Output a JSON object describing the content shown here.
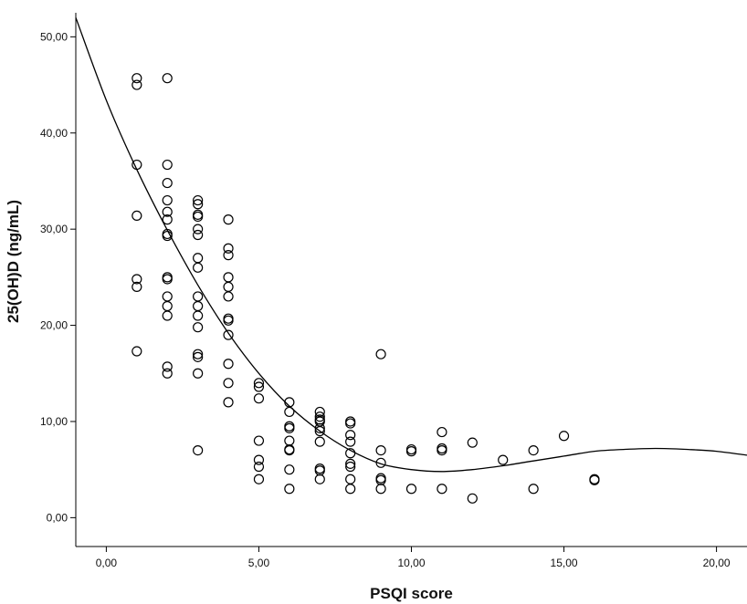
{
  "chart_data": {
    "type": "scatter",
    "title": "",
    "xlabel": "PSQI score",
    "ylabel": "25(OH)D (ng/mL)",
    "xlim": [
      -1,
      21
    ],
    "ylim": [
      -3,
      52.5
    ],
    "x_ticks": [
      0,
      5,
      10,
      15,
      20
    ],
    "x_tick_labels": [
      "0,00",
      "5,00",
      "10,00",
      "15,00",
      "20,00"
    ],
    "y_ticks": [
      0,
      10,
      20,
      30,
      40,
      50
    ],
    "y_tick_labels": [
      "0,00",
      "10,00",
      "20,00",
      "30,00",
      "40,00",
      "50,00"
    ],
    "grid": false,
    "legend": "none",
    "marker": "open-circle",
    "colors": {
      "marker": "#000000",
      "curve": "#000000",
      "axis": "#000000"
    },
    "points": [
      [
        1,
        45.7
      ],
      [
        1,
        45.0
      ],
      [
        1,
        36.7
      ],
      [
        1,
        31.4
      ],
      [
        1,
        24.8
      ],
      [
        1,
        24.0
      ],
      [
        1,
        17.3
      ],
      [
        2,
        45.7
      ],
      [
        2,
        36.7
      ],
      [
        2,
        34.8
      ],
      [
        2,
        33.0
      ],
      [
        2,
        31.8
      ],
      [
        2,
        31.0
      ],
      [
        2,
        29.5
      ],
      [
        2,
        29.3
      ],
      [
        2,
        25.0
      ],
      [
        2,
        24.8
      ],
      [
        2,
        23.0
      ],
      [
        2,
        22.0
      ],
      [
        2,
        21.0
      ],
      [
        2,
        15.7
      ],
      [
        2,
        15.0
      ],
      [
        3,
        33.0
      ],
      [
        3,
        32.6
      ],
      [
        3,
        31.5
      ],
      [
        3,
        31.3
      ],
      [
        3,
        30.0
      ],
      [
        3,
        29.4
      ],
      [
        3,
        27.0
      ],
      [
        3,
        26.0
      ],
      [
        3,
        23.0
      ],
      [
        3,
        22.0
      ],
      [
        3,
        21.0
      ],
      [
        3,
        19.8
      ],
      [
        3,
        17.0
      ],
      [
        3,
        16.7
      ],
      [
        3,
        15.0
      ],
      [
        3,
        7.0
      ],
      [
        4,
        31.0
      ],
      [
        4,
        28.0
      ],
      [
        4,
        27.3
      ],
      [
        4,
        25.0
      ],
      [
        4,
        24.0
      ],
      [
        4,
        23.0
      ],
      [
        4,
        20.7
      ],
      [
        4,
        20.5
      ],
      [
        4,
        19.0
      ],
      [
        4,
        16.0
      ],
      [
        4,
        14.0
      ],
      [
        4,
        12.0
      ],
      [
        5,
        14.0
      ],
      [
        5,
        13.6
      ],
      [
        5,
        12.4
      ],
      [
        5,
        8.0
      ],
      [
        5,
        6.0
      ],
      [
        5,
        5.3
      ],
      [
        5,
        4.0
      ],
      [
        6,
        12.0
      ],
      [
        6,
        11.0
      ],
      [
        6,
        9.5
      ],
      [
        6,
        9.3
      ],
      [
        6,
        8.0
      ],
      [
        6,
        7.1
      ],
      [
        6,
        7.0
      ],
      [
        6,
        5.0
      ],
      [
        6,
        3.0
      ],
      [
        7,
        11.0
      ],
      [
        7,
        10.5
      ],
      [
        7,
        10.2
      ],
      [
        7,
        10.0
      ],
      [
        7,
        9.3
      ],
      [
        7,
        9.0
      ],
      [
        7,
        7.9
      ],
      [
        7,
        5.1
      ],
      [
        7,
        4.9
      ],
      [
        7,
        4.0
      ],
      [
        8,
        10.0
      ],
      [
        8,
        9.8
      ],
      [
        8,
        8.6
      ],
      [
        8,
        7.9
      ],
      [
        8,
        6.7
      ],
      [
        8,
        5.6
      ],
      [
        8,
        5.3
      ],
      [
        8,
        4.0
      ],
      [
        8,
        3.0
      ],
      [
        9,
        17.0
      ],
      [
        9,
        7.0
      ],
      [
        9,
        5.7
      ],
      [
        9,
        4.1
      ],
      [
        9,
        3.9
      ],
      [
        9,
        3.0
      ],
      [
        10,
        7.1
      ],
      [
        10,
        6.9
      ],
      [
        10,
        3.0
      ],
      [
        11,
        8.9
      ],
      [
        11,
        7.2
      ],
      [
        11,
        7.0
      ],
      [
        11,
        3.0
      ],
      [
        12,
        7.8
      ],
      [
        12,
        2.0
      ],
      [
        13,
        6.0
      ],
      [
        14,
        7.0
      ],
      [
        14,
        3.0
      ],
      [
        15,
        8.5
      ],
      [
        16,
        4.0
      ],
      [
        16,
        3.9
      ]
    ],
    "fit_curve": {
      "type": "cubic",
      "x": [
        -1,
        0,
        1,
        2,
        3,
        4,
        5,
        6,
        7,
        8,
        9,
        10,
        11,
        12,
        13,
        14,
        15,
        16,
        17,
        18,
        19,
        20,
        21
      ],
      "y": [
        52.0,
        43.4,
        36.2,
        29.9,
        24.2,
        19.2,
        15.0,
        11.6,
        9.0,
        7.0,
        5.6,
        5.0,
        4.8,
        5.0,
        5.4,
        5.9,
        6.4,
        6.9,
        7.1,
        7.2,
        7.1,
        6.9,
        6.5
      ]
    }
  }
}
